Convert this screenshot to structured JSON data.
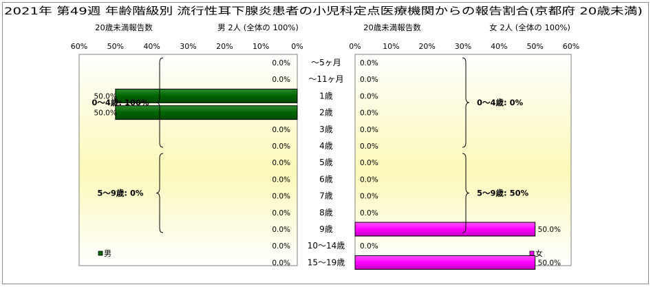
{
  "chart_data": {
    "type": "bar",
    "title": "2021年 第49週 年齢階級別 流行性耳下腺炎患者の小児科定点医療機関からの報告割合(京都府 20歳未満)",
    "categories": [
      "～5ヶ月",
      "～11ヶ月",
      "1歳",
      "2歳",
      "3歳",
      "4歳",
      "5歳",
      "6歳",
      "7歳",
      "8歳",
      "9歳",
      "10～14歳",
      "15～19歳"
    ],
    "xlim": [
      0,
      60
    ],
    "ticks": [
      "0%",
      "10%",
      "20%",
      "30%",
      "40%",
      "50%",
      "60%"
    ],
    "grid": false,
    "panels": [
      {
        "side": "left",
        "axis_title": "20歳未満報告数",
        "header": "男  2人  (全体の  100%)",
        "series": [
          {
            "name": "男",
            "color": "#006400",
            "values": [
              0,
              0,
              50,
              50,
              0,
              0,
              0,
              0,
              0,
              0,
              0,
              0,
              0
            ]
          }
        ],
        "value_labels": [
          "0.0%",
          "0.0%",
          "50.0%",
          "50.0%",
          "0.0%",
          "0.0%",
          "0.0%",
          "0.0%",
          "0.0%",
          "0.0%",
          "0.0%",
          "0.0%",
          "0.0%"
        ],
        "group_labels": [
          "0～4歳: 100%",
          "5～9歳: 0%"
        ],
        "legend": "男"
      },
      {
        "side": "right",
        "axis_title": "20歳未満報告数",
        "header": "女  2人  (全体の  100%)",
        "series": [
          {
            "name": "女",
            "color": "#ff00ff",
            "values": [
              0,
              0,
              0,
              0,
              0,
              0,
              0,
              0,
              0,
              0,
              50,
              0,
              50
            ]
          }
        ],
        "value_labels": [
          "0.0%",
          "0.0%",
          "0.0%",
          "0.0%",
          "0.0%",
          "0.0%",
          "0.0%",
          "0.0%",
          "0.0%",
          "0.0%",
          "50.0%",
          "0.0%",
          "50.0%"
        ],
        "group_labels": [
          "0～4歳: 0%",
          "5～9歳: 50%"
        ],
        "legend": "女"
      }
    ]
  }
}
